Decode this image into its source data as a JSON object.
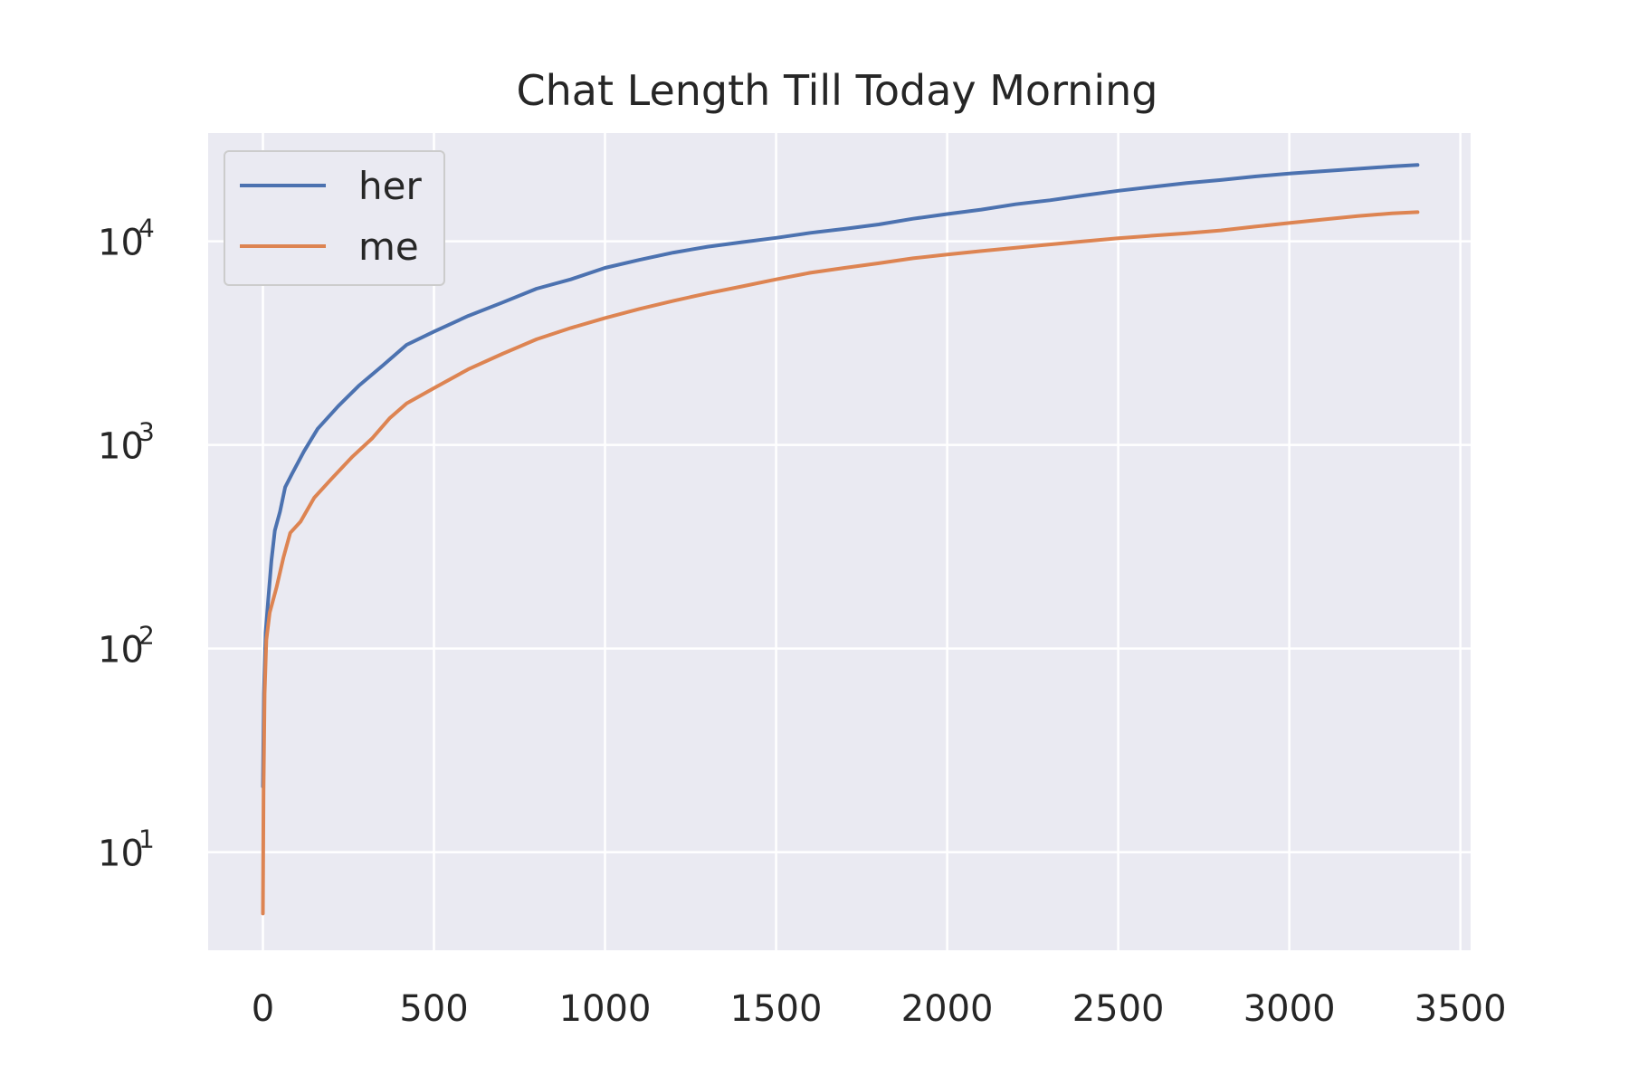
{
  "chart_data": {
    "type": "line",
    "title": "Chat Length Till Today Morning",
    "xlabel": "",
    "ylabel": "",
    "yscale": "log",
    "xlim": [
      -160,
      3530
    ],
    "ylim": [
      3.3,
      34000
    ],
    "x_ticks": [
      0,
      500,
      1000,
      1500,
      2000,
      2500,
      3000,
      3500
    ],
    "x_tick_labels": [
      "0",
      "500",
      "1000",
      "1500",
      "2000",
      "2500",
      "3000",
      "3500"
    ],
    "y_ticks": [
      {
        "value": 10,
        "base": "10",
        "exp": "1"
      },
      {
        "value": 100,
        "base": "10",
        "exp": "2"
      },
      {
        "value": 1000,
        "base": "10",
        "exp": "3"
      },
      {
        "value": 10000,
        "base": "10",
        "exp": "4"
      }
    ],
    "grid": true,
    "legend_position": "top-left",
    "background_color": "#eaeaf2",
    "series": [
      {
        "name": "her",
        "color": "#4c72b0",
        "points": [
          [
            0,
            21
          ],
          [
            3,
            60
          ],
          [
            8,
            120
          ],
          [
            15,
            170
          ],
          [
            25,
            270
          ],
          [
            35,
            380
          ],
          [
            50,
            470
          ],
          [
            65,
            620
          ],
          [
            85,
            720
          ],
          [
            120,
            930
          ],
          [
            160,
            1200
          ],
          [
            220,
            1550
          ],
          [
            280,
            1950
          ],
          [
            350,
            2450
          ],
          [
            420,
            3100
          ],
          [
            500,
            3600
          ],
          [
            600,
            4300
          ],
          [
            700,
            5000
          ],
          [
            800,
            5850
          ],
          [
            900,
            6500
          ],
          [
            1000,
            7400
          ],
          [
            1100,
            8100
          ],
          [
            1200,
            8800
          ],
          [
            1300,
            9400
          ],
          [
            1400,
            9900
          ],
          [
            1500,
            10400
          ],
          [
            1600,
            11000
          ],
          [
            1700,
            11500
          ],
          [
            1800,
            12100
          ],
          [
            1900,
            12900
          ],
          [
            2000,
            13600
          ],
          [
            2100,
            14300
          ],
          [
            2200,
            15200
          ],
          [
            2300,
            15900
          ],
          [
            2400,
            16800
          ],
          [
            2500,
            17700
          ],
          [
            2600,
            18500
          ],
          [
            2700,
            19300
          ],
          [
            2800,
            20000
          ],
          [
            2900,
            20800
          ],
          [
            3000,
            21500
          ],
          [
            3100,
            22100
          ],
          [
            3200,
            22700
          ],
          [
            3300,
            23300
          ],
          [
            3375,
            23700
          ]
        ]
      },
      {
        "name": "me",
        "color": "#dd8452",
        "points": [
          [
            0,
            5
          ],
          [
            2,
            20
          ],
          [
            5,
            60
          ],
          [
            10,
            110
          ],
          [
            20,
            150
          ],
          [
            40,
            200
          ],
          [
            60,
            280
          ],
          [
            80,
            370
          ],
          [
            110,
            420
          ],
          [
            150,
            550
          ],
          [
            200,
            680
          ],
          [
            260,
            870
          ],
          [
            320,
            1080
          ],
          [
            370,
            1350
          ],
          [
            420,
            1600
          ],
          [
            500,
            1900
          ],
          [
            600,
            2350
          ],
          [
            700,
            2800
          ],
          [
            800,
            3300
          ],
          [
            900,
            3750
          ],
          [
            1000,
            4200
          ],
          [
            1100,
            4650
          ],
          [
            1200,
            5100
          ],
          [
            1300,
            5550
          ],
          [
            1400,
            6000
          ],
          [
            1500,
            6500
          ],
          [
            1600,
            7000
          ],
          [
            1700,
            7400
          ],
          [
            1800,
            7800
          ],
          [
            1900,
            8250
          ],
          [
            2000,
            8600
          ],
          [
            2100,
            8950
          ],
          [
            2200,
            9300
          ],
          [
            2300,
            9650
          ],
          [
            2400,
            10000
          ],
          [
            2500,
            10350
          ],
          [
            2600,
            10650
          ],
          [
            2700,
            10950
          ],
          [
            2800,
            11300
          ],
          [
            2900,
            11800
          ],
          [
            3000,
            12300
          ],
          [
            3100,
            12800
          ],
          [
            3200,
            13300
          ],
          [
            3300,
            13700
          ],
          [
            3375,
            13900
          ]
        ]
      }
    ]
  }
}
